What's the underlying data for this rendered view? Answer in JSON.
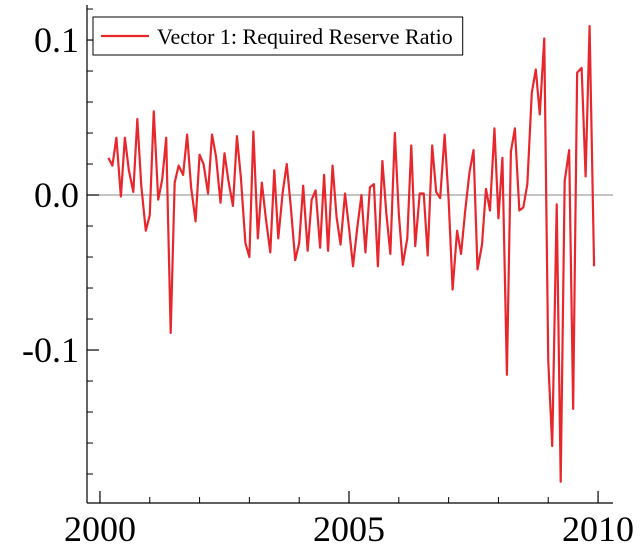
{
  "chart_data": {
    "type": "line",
    "series": [
      {
        "name": "Vector 1: Required Reserve Ratio",
        "color": "#e8272d",
        "values": [
          0.024,
          0.019,
          0.037,
          -0.001,
          0.037,
          0.016,
          0.002,
          0.049,
          0.006,
          -0.023,
          -0.013,
          0.054,
          -0.003,
          0.01,
          0.037,
          -0.089,
          0.008,
          0.019,
          0.013,
          0.039,
          0.005,
          -0.017,
          0.026,
          0.02,
          0.001,
          0.039,
          0.025,
          -0.005,
          0.027,
          0.009,
          -0.007,
          0.038,
          0.011,
          -0.031,
          -0.04,
          0.041,
          -0.028,
          0.008,
          -0.015,
          -0.037,
          0.016,
          -0.028,
          0.002,
          0.02,
          -0.007,
          -0.042,
          -0.031,
          0.006,
          -0.036,
          -0.003,
          0.003,
          -0.034,
          0.013,
          -0.036,
          0.019,
          -0.014,
          -0.032,
          0.001,
          -0.021,
          -0.046,
          -0.02,
          0.0,
          -0.037,
          0.005,
          0.007,
          -0.046,
          0.022,
          -0.012,
          -0.038,
          0.04,
          -0.012,
          -0.045,
          -0.028,
          0.032,
          -0.033,
          0.001,
          0.001,
          -0.039,
          0.032,
          0.002,
          -0.002,
          0.039,
          -0.003,
          -0.061,
          -0.023,
          -0.038,
          -0.011,
          0.015,
          0.029,
          -0.048,
          -0.032,
          0.004,
          -0.01,
          0.043,
          -0.015,
          0.024,
          -0.116,
          0.028,
          0.043,
          -0.01,
          -0.008,
          0.007,
          0.066,
          0.081,
          0.052,
          0.101,
          -0.107,
          -0.162,
          -0.006,
          -0.185,
          0.009,
          0.029,
          -0.138,
          0.079,
          0.082,
          0.012,
          0.109,
          -0.046
        ]
      }
    ],
    "x": [
      2000.17,
      2000.25,
      2000.33,
      2000.42,
      2000.5,
      2000.58,
      2000.67,
      2000.75,
      2000.83,
      2000.92,
      2001.0,
      2001.08,
      2001.17,
      2001.25,
      2001.33,
      2001.42,
      2001.5,
      2001.58,
      2001.67,
      2001.75,
      2001.83,
      2001.92,
      2002.0,
      2002.08,
      2002.17,
      2002.25,
      2002.33,
      2002.42,
      2002.5,
      2002.58,
      2002.67,
      2002.75,
      2002.83,
      2002.92,
      2003.0,
      2003.08,
      2003.17,
      2003.25,
      2003.33,
      2003.42,
      2003.5,
      2003.58,
      2003.67,
      2003.75,
      2003.83,
      2003.92,
      2004.0,
      2004.08,
      2004.17,
      2004.25,
      2004.33,
      2004.42,
      2004.5,
      2004.58,
      2004.67,
      2004.75,
      2004.83,
      2004.92,
      2005.0,
      2005.08,
      2005.17,
      2005.25,
      2005.33,
      2005.42,
      2005.5,
      2005.58,
      2005.67,
      2005.75,
      2005.83,
      2005.92,
      2006.0,
      2006.08,
      2006.17,
      2006.25,
      2006.33,
      2006.42,
      2006.5,
      2006.58,
      2006.67,
      2006.75,
      2006.83,
      2006.92,
      2007.0,
      2007.08,
      2007.17,
      2007.25,
      2007.33,
      2007.42,
      2007.5,
      2007.58,
      2007.67,
      2007.75,
      2007.83,
      2007.92,
      2008.0,
      2008.08,
      2008.17,
      2008.25,
      2008.33,
      2008.42,
      2008.5,
      2008.58,
      2008.67,
      2008.75,
      2008.83,
      2008.92,
      2009.0,
      2009.08,
      2009.17,
      2009.25,
      2009.33,
      2009.42,
      2009.5,
      2009.58,
      2009.67,
      2009.75,
      2009.83,
      2009.92
    ],
    "xlim": [
      1999.74,
      2010.3
    ],
    "xticks": [
      2000,
      2005,
      2010
    ],
    "xminorticks": [
      2001,
      2002,
      2003,
      2004,
      2006,
      2007,
      2008,
      2009
    ],
    "ylim": [
      -0.1987,
      0.1226
    ],
    "yticks": [
      0.1,
      {
        "value": 0,
        "label": "0.0"
      },
      -0.1
    ],
    "yminorticks": [
      0.12,
      0.08,
      0.06,
      0.04,
      0.02,
      -0.02,
      -0.04,
      -0.06,
      -0.08,
      -0.12,
      -0.14,
      -0.16,
      -0.18
    ],
    "hline": 0,
    "legend": "upper left"
  }
}
